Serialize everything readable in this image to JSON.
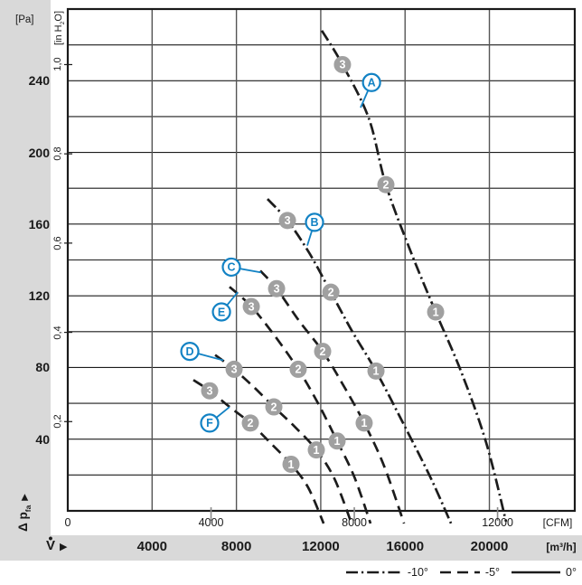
{
  "colors": {
    "strip_bg": "#d9d9d9",
    "curve": "#1c1c1c",
    "grid_h": "#1c1c1c",
    "grid_v": "#555555",
    "border": "#1a1a1a",
    "cfm_tick": "#8a8a8a",
    "marker_fill": "#a0a0a0",
    "marker_text": "#ffffff",
    "label_blue": "#1282c4",
    "text": "#1a1a1a"
  },
  "pressure_axis": {
    "unit_pa": "[Pa]",
    "pa_ticks": [
      {
        "label": "240",
        "value": 240
      },
      {
        "label": "200",
        "value": 200
      },
      {
        "label": "160",
        "value": 160
      },
      {
        "label": "120",
        "value": 120
      },
      {
        "label": "80",
        "value": 80
      },
      {
        "label": "40",
        "value": 40
      }
    ],
    "unit_inh2o_parts": {
      "pre": "[in H",
      "sub": "2",
      "post": "O]"
    },
    "inh2o_ticks": [
      {
        "label": "1,0",
        "value": 1.0
      },
      {
        "label": "0,8",
        "value": 0.8
      },
      {
        "label": "0,6",
        "value": 0.6
      },
      {
        "label": "0,4",
        "value": 0.4
      },
      {
        "label": "0,2",
        "value": 0.2
      }
    ],
    "axis_label": {
      "text": "Δ p",
      "sub": "fa",
      "arrow": "▶"
    }
  },
  "flow_axis": {
    "cfm_ticks": [
      {
        "label": "0",
        "cfm": 0
      },
      {
        "label": "4000",
        "cfm": 4000
      },
      {
        "label": "8000",
        "cfm": 8000
      },
      {
        "label": "12000",
        "cfm": 12000
      }
    ],
    "unit_cfm": "[CFM]",
    "m3h_ticks": [
      {
        "label": "4000",
        "m3h": 4000
      },
      {
        "label": "8000",
        "m3h": 8000
      },
      {
        "label": "12000",
        "m3h": 12000
      },
      {
        "label": "16000",
        "m3h": 16000
      },
      {
        "label": "20000",
        "m3h": 20000
      }
    ],
    "unit_m3h": "[m³/h]",
    "axis_label": {
      "letter": "V",
      "dot": "•",
      "arrow": "▶"
    }
  },
  "legend": {
    "items": [
      {
        "label": "-10°",
        "style": "dashdot"
      },
      {
        "label": "-5°",
        "style": "dash"
      },
      {
        "label": "0°",
        "style": "solid"
      }
    ]
  },
  "chart_data": {
    "type": "line",
    "title": "Fan air performance curves",
    "xlabel": "V̇ (air flow)",
    "ylabel": "Δ pfa (pressure increase)",
    "x": {
      "unit_primary": "m³/h",
      "unit_secondary": "CFM",
      "xlim_m3h": [
        0,
        24050
      ],
      "gridlines_m3h": [
        4000,
        8000,
        12000,
        16000,
        20000
      ],
      "cfm_to_m3h": 1.699
    },
    "y": {
      "unit_primary": "Pa",
      "unit_secondary": "in H₂O",
      "ylim_pa": [
        0,
        280
      ],
      "grid_step_pa": 20,
      "inh2o_to_pa": 249
    },
    "grid": true,
    "legend_position": "bottom-right",
    "series": [
      {
        "id": "A",
        "angle": "-10°",
        "style": "dashdot",
        "points": [
          [
            12050,
            268
          ],
          [
            13030,
            249
          ],
          [
            14280,
            219
          ],
          [
            15090,
            182
          ],
          [
            16290,
            144
          ],
          [
            17450,
            111
          ],
          [
            18650,
            78
          ],
          [
            19850,
            38
          ],
          [
            20790,
            -6
          ]
        ],
        "markers": [
          {
            "n": "3",
            "at": [
              13030,
              249
            ]
          },
          {
            "n": "2",
            "at": [
              15090,
              182
            ]
          },
          {
            "n": "1",
            "at": [
              17450,
              111
            ]
          }
        ],
        "label_at": [
          14410,
          239
        ],
        "label_anchor": [
          13890,
          225
        ]
      },
      {
        "id": "B",
        "angle": "-10°",
        "style": "dashdot",
        "points": [
          [
            9475,
            174
          ],
          [
            10420,
            162
          ],
          [
            11450,
            144
          ],
          [
            12480,
            122
          ],
          [
            13500,
            100
          ],
          [
            14620,
            78
          ],
          [
            15905,
            49
          ],
          [
            17190,
            19
          ],
          [
            18180,
            -7
          ]
        ],
        "markers": [
          {
            "n": "3",
            "at": [
              10420,
              162
            ]
          },
          {
            "n": "2",
            "at": [
              12480,
              122
            ]
          },
          {
            "n": "1",
            "at": [
              14620,
              78
            ]
          }
        ],
        "label_at": [
          11705,
          161
        ],
        "label_anchor": [
          11360,
          148
        ]
      },
      {
        "id": "C",
        "angle": "-5°",
        "style": "dash",
        "points": [
          [
            9130,
            134
          ],
          [
            9905,
            124
          ],
          [
            10975,
            106
          ],
          [
            12090,
            89
          ],
          [
            13075,
            70
          ],
          [
            14060,
            49
          ],
          [
            15005,
            25
          ],
          [
            15950,
            -7
          ]
        ],
        "markers": [
          {
            "n": "3",
            "at": [
              9905,
              124
            ]
          },
          {
            "n": "2",
            "at": [
              12090,
              89
            ]
          },
          {
            "n": "1",
            "at": [
              14060,
              49
            ]
          }
        ],
        "label_at": [
          7760,
          136
        ],
        "label_anchor": [
          9175,
          133
        ]
      },
      {
        "id": "D",
        "angle": "-5°",
        "style": "dash",
        "points": [
          [
            6990,
            87
          ],
          [
            7890,
            79
          ],
          [
            8830,
            69
          ],
          [
            9775,
            58
          ],
          [
            10760,
            47
          ],
          [
            11790,
            34
          ],
          [
            12645,
            18
          ],
          [
            13460,
            -7
          ]
        ],
        "markers": [
          {
            "n": "3",
            "at": [
              7890,
              79
            ]
          },
          {
            "n": "2",
            "at": [
              9775,
              58
            ]
          },
          {
            "n": "1",
            "at": [
              11790,
              34
            ]
          }
        ],
        "label_at": [
          5790,
          89
        ],
        "label_anchor": [
          7375,
          84
        ]
      },
      {
        "id": "E",
        "angle": "-5°",
        "style": "dash",
        "points": [
          [
            7675,
            125
          ],
          [
            8705,
            114
          ],
          [
            9860,
            97
          ],
          [
            10930,
            79
          ],
          [
            11875,
            60
          ],
          [
            12775,
            39
          ],
          [
            13590,
            19
          ],
          [
            14360,
            -7
          ]
        ],
        "markers": [
          {
            "n": "3",
            "at": [
              8705,
              114
            ]
          },
          {
            "n": "2",
            "at": [
              10930,
              79
            ]
          },
          {
            "n": "1",
            "at": [
              12775,
              39
            ]
          }
        ],
        "label_at": [
          7290,
          111
        ],
        "label_anchor": [
          8060,
          122
        ]
      },
      {
        "id": "F",
        "angle": "-5°",
        "style": "dash",
        "points": [
          [
            5960,
            73
          ],
          [
            6730,
            67
          ],
          [
            7675,
            58
          ],
          [
            8660,
            49
          ],
          [
            9605,
            38
          ],
          [
            10590,
            26
          ],
          [
            11405,
            13
          ],
          [
            12135,
            -7
          ]
        ],
        "markers": [
          {
            "n": "3",
            "at": [
              6730,
              67
            ]
          },
          {
            "n": "2",
            "at": [
              8660,
              49
            ]
          },
          {
            "n": "1",
            "at": [
              10590,
              26
            ]
          }
        ],
        "label_at": [
          6730,
          49
        ],
        "label_anchor": [
          7675,
          58
        ]
      }
    ]
  }
}
